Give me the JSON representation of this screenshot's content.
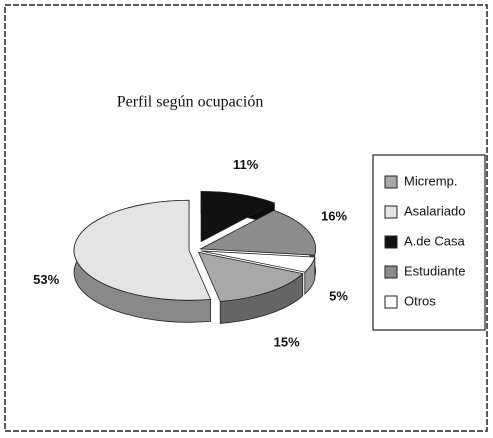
{
  "chart_data": {
    "type": "pie",
    "title": "Perfil según ocupación",
    "series": [
      {
        "name": "Micremp.",
        "color": "#a8a8a8",
        "values": [
          15
        ],
        "value_labels": [
          "15%"
        ]
      },
      {
        "name": "Asalariado",
        "color": "#e4e4e4",
        "values": [
          53
        ],
        "value_labels": [
          "53%"
        ]
      },
      {
        "name": "A.de Casa",
        "color": "#111111",
        "values": [
          11
        ],
        "value_labels": [
          "11%"
        ]
      },
      {
        "name": "Estudiante",
        "color": "#8c8c8c",
        "values": [
          16
        ],
        "value_labels": [
          "16%"
        ]
      },
      {
        "name": "Otros",
        "color": "#ffffff",
        "values": [
          5
        ],
        "value_labels": [
          "5%"
        ]
      }
    ],
    "legend": "right"
  }
}
